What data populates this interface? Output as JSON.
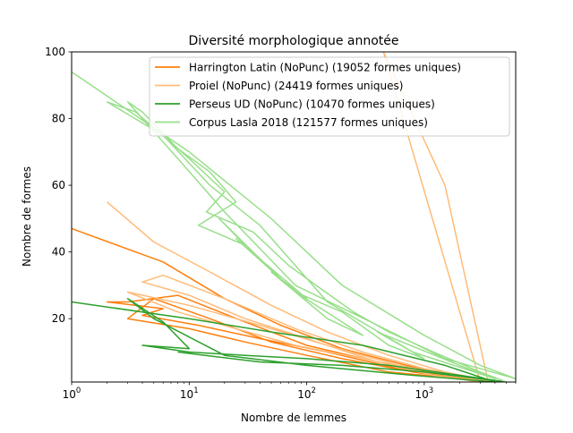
{
  "chart_data": {
    "type": "line",
    "title": "Diversité morphologique annotée",
    "xlabel": "Nombre de lemmes",
    "ylabel": "Nombre de formes",
    "xscale": "log",
    "xlim": [
      1,
      6000
    ],
    "ylim": [
      1,
      100
    ],
    "grid": false,
    "legend_position": "top-right",
    "x_ticks": [
      {
        "value": 1,
        "base": "10",
        "exp": "0"
      },
      {
        "value": 10,
        "base": "10",
        "exp": "1"
      },
      {
        "value": 100,
        "base": "10",
        "exp": "2"
      },
      {
        "value": 1000,
        "base": "10",
        "exp": "3"
      }
    ],
    "y_ticks": [
      20,
      40,
      60,
      80,
      100
    ],
    "series": [
      {
        "name": "Harrington Latin (NoPunc) (19052 formes uniques)",
        "color": "#ff7f0e",
        "x": [
          1,
          6,
          20,
          60,
          200,
          700,
          3500,
          1500,
          400,
          100,
          30,
          8,
          3,
          2,
          6,
          4,
          12,
          40,
          150,
          600,
          3000,
          800,
          200,
          50,
          15,
          5,
          3,
          10,
          30,
          100,
          500,
          4000
        ],
        "y": [
          47,
          37,
          26,
          18,
          11,
          6,
          1,
          3,
          7,
          12,
          19,
          27,
          25,
          25,
          23,
          21,
          18,
          14,
          10,
          5,
          1,
          4,
          8,
          13,
          20,
          26,
          20,
          17,
          13,
          9,
          4,
          1
        ]
      },
      {
        "name": "Proiel (NoPunc) (24419 formes uniques)",
        "color": "#ffbb78",
        "x": [
          2,
          5,
          15,
          50,
          150,
          500,
          1500,
          4000,
          1000,
          300,
          80,
          20,
          6,
          4,
          10,
          30,
          100,
          400,
          1200,
          3000,
          450,
          1500,
          3500,
          600,
          150,
          40,
          10,
          3,
          8,
          25,
          80,
          300,
          1000,
          3800
        ],
        "y": [
          55,
          43,
          34,
          24,
          16,
          9,
          4,
          1,
          5,
          10,
          17,
          26,
          33,
          31,
          27,
          20,
          14,
          7,
          3,
          1,
          100,
          60,
          1,
          6,
          12,
          18,
          24,
          28,
          22,
          17,
          12,
          8,
          4,
          1
        ]
      },
      {
        "name": "Perseus UD (NoPunc) (10470 formes uniques)",
        "color": "#2ca02c",
        "x": [
          1,
          10,
          50,
          300,
          1500,
          4000,
          800,
          100,
          20,
          5,
          3,
          6,
          10,
          4,
          10,
          30,
          100,
          500,
          2000,
          5000,
          1000,
          200,
          40,
          8
        ],
        "y": [
          25,
          20,
          16,
          12,
          6,
          1,
          3,
          6,
          9,
          20,
          26,
          19,
          11,
          12,
          10,
          9,
          8,
          6,
          3,
          1,
          4,
          6,
          7,
          10
        ]
      },
      {
        "name": "Corpus Lasla 2018 (121577 formes uniques)",
        "color": "#98df8a",
        "x": [
          1,
          10,
          50,
          200,
          1000,
          3000,
          6000,
          1500,
          400,
          80,
          20,
          8,
          3,
          4,
          8,
          15,
          25,
          12,
          30,
          18,
          40,
          60,
          25,
          100,
          50,
          150,
          300,
          80,
          200,
          500,
          1000,
          400,
          2000,
          4000,
          800,
          150,
          40,
          15,
          6,
          2,
          3.5,
          10,
          20,
          14,
          35,
          70,
          120,
          250,
          500,
          1200,
          3000,
          5000
        ],
        "y": [
          94,
          70,
          50,
          30,
          15,
          6,
          2,
          8,
          18,
          30,
          52,
          68,
          85,
          82,
          71,
          64,
          55,
          48,
          42,
          50,
          38,
          32,
          44,
          26,
          34,
          20,
          15,
          28,
          22,
          12,
          8,
          16,
          6,
          2,
          10,
          25,
          48,
          60,
          75,
          85,
          82,
          68,
          58,
          52,
          46,
          36,
          30,
          22,
          16,
          10,
          4,
          1
        ]
      }
    ]
  }
}
